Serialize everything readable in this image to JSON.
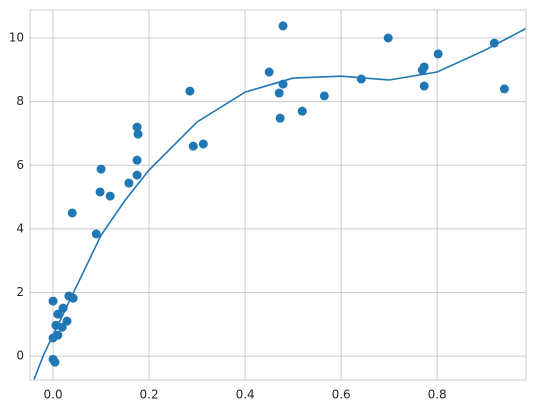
{
  "chart_data": {
    "type": "scatter",
    "xlim": [
      -0.048,
      0.985
    ],
    "ylim": [
      -0.75,
      10.88
    ],
    "xticks": [
      {
        "value": 0,
        "label": "0.0"
      },
      0.2,
      0.4,
      0.6,
      0.8
    ],
    "yticks": [
      0,
      2,
      4,
      6,
      8,
      10
    ],
    "grid": true,
    "series": [
      {
        "type": "scatter",
        "color": "#1f77b4",
        "x": [
          0.0,
          0.01,
          0.006,
          0.0,
          0.0,
          0.004,
          0.01,
          0.019,
          0.021,
          0.029,
          0.033,
          0.042,
          0.04,
          0.09,
          0.098,
          0.1,
          0.119,
          0.158,
          0.175,
          0.177,
          0.175,
          0.175,
          0.285,
          0.292,
          0.313,
          0.45,
          0.479,
          0.471,
          0.479,
          0.473,
          0.519,
          0.565,
          0.642,
          0.698,
          0.769,
          0.773,
          0.773,
          0.802,
          0.919,
          0.94
        ],
        "values": [
          1.73,
          1.32,
          0.97,
          0.57,
          -0.1,
          -0.19,
          0.66,
          0.91,
          1.51,
          1.1,
          1.89,
          1.82,
          4.5,
          3.84,
          5.16,
          5.88,
          5.03,
          5.44,
          7.2,
          6.98,
          6.16,
          5.69,
          8.33,
          6.6,
          6.67,
          8.93,
          10.38,
          8.27,
          8.55,
          7.48,
          7.7,
          8.18,
          8.71,
          10.0,
          8.99,
          9.09,
          8.49,
          9.5,
          9.84,
          8.4
        ]
      },
      {
        "type": "line",
        "color": "#1f77b4",
        "x": [
          -0.04,
          -0.02,
          0.0,
          0.05,
          0.1,
          0.15,
          0.2,
          0.3,
          0.4,
          0.5,
          0.6,
          0.7,
          0.8,
          0.9,
          0.985
        ],
        "values": [
          -0.75,
          0.03,
          0.66,
          2.23,
          3.8,
          4.9,
          5.85,
          7.36,
          8.3,
          8.74,
          8.8,
          8.68,
          8.93,
          9.62,
          10.3
        ]
      }
    ]
  }
}
